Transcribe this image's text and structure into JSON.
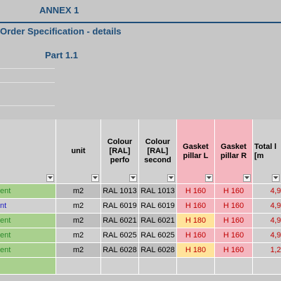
{
  "header": {
    "annex": "ANNEX 1",
    "title": "Order Specification  - details",
    "part": "Part 1.1"
  },
  "colors": {
    "title_blue": "#1f4e79",
    "sheet_gray": "#c6c6c6",
    "green_cell": "#a9d08e",
    "pink_cell": "#f4b6bf",
    "yellow_cell": "#ffe39b",
    "red_text": "#c00000"
  },
  "table": {
    "columns": [
      {
        "label": ""
      },
      {
        "label": "unit"
      },
      {
        "label": "Colour [RAL] perfo"
      },
      {
        "label": "Colour [RAL] second"
      },
      {
        "label": "Gasket pillar L"
      },
      {
        "label": "Gasket pillar R"
      },
      {
        "label": "Total l [m"
      }
    ],
    "rows": [
      {
        "name": "ent",
        "unit": "m2",
        "perfo": "RAL 1013",
        "second": "RAL 1013",
        "pillar_l": "H 160",
        "pillar_r": "H 160",
        "total": "4,9"
      },
      {
        "name": "nt",
        "unit": "m2",
        "perfo": "RAL 6019",
        "second": "RAL 6019",
        "pillar_l": "H 160",
        "pillar_r": "H 160",
        "total": "4,9"
      },
      {
        "name": "ent",
        "unit": "m2",
        "perfo": "RAL 6021",
        "second": "RAL 6021",
        "pillar_l": "H 180",
        "pillar_r": "H 160",
        "total": "4,9"
      },
      {
        "name": "ent",
        "unit": "m2",
        "perfo": "RAL 6025",
        "second": "RAL 6025",
        "pillar_l": "H 160",
        "pillar_r": "H 160",
        "total": "4,9"
      },
      {
        "name": "ent",
        "unit": "m2",
        "perfo": "RAL 6028",
        "second": "RAL 6028",
        "pillar_l": "H 180",
        "pillar_r": "H 160",
        "total": "1,2"
      }
    ]
  }
}
